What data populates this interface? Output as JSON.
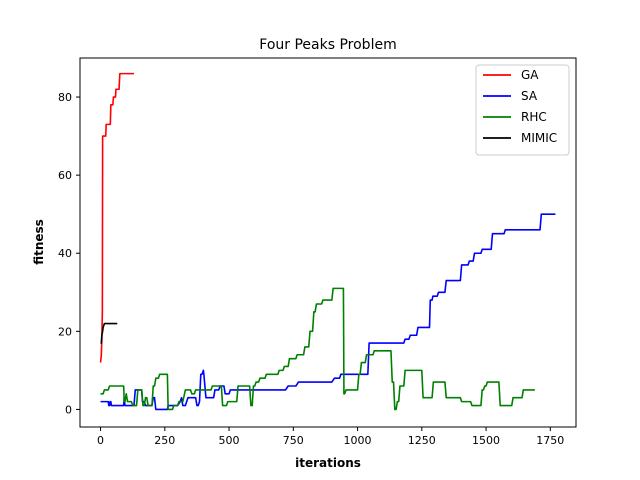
{
  "chart_data": {
    "type": "line",
    "title": "Four Peaks Problem",
    "xlabel": "iterations",
    "ylabel": "fitness",
    "xlim": [
      -80,
      1850
    ],
    "ylim": [
      -4.5,
      90
    ],
    "xticks": [
      0,
      250,
      500,
      750,
      1000,
      1250,
      1500,
      1750
    ],
    "yticks": [
      0,
      20,
      40,
      60,
      80
    ],
    "legend_position": "top-right",
    "grid": false,
    "series": [
      {
        "name": "GA",
        "color": "#ff0000",
        "points": [
          [
            0,
            12
          ],
          [
            3,
            14
          ],
          [
            5,
            18
          ],
          [
            7,
            25
          ],
          [
            8,
            70
          ],
          [
            20,
            70
          ],
          [
            22,
            73
          ],
          [
            38,
            73
          ],
          [
            40,
            78
          ],
          [
            48,
            78
          ],
          [
            50,
            80
          ],
          [
            58,
            80
          ],
          [
            60,
            82
          ],
          [
            72,
            82
          ],
          [
            75,
            86
          ],
          [
            130,
            86
          ]
        ]
      },
      {
        "name": "SA",
        "color": "#0000ff",
        "points": [
          [
            0,
            2
          ],
          [
            30,
            2
          ],
          [
            32,
            1
          ],
          [
            35,
            1
          ],
          [
            37,
            2
          ],
          [
            40,
            2
          ],
          [
            42,
            1
          ],
          [
            90,
            1
          ],
          [
            92,
            3
          ],
          [
            95,
            1
          ],
          [
            130,
            1
          ],
          [
            135,
            5
          ],
          [
            160,
            5
          ],
          [
            163,
            2
          ],
          [
            170,
            2
          ],
          [
            175,
            1
          ],
          [
            200,
            1
          ],
          [
            205,
            3
          ],
          [
            210,
            3
          ],
          [
            215,
            0
          ],
          [
            260,
            0
          ],
          [
            263,
            1
          ],
          [
            300,
            1
          ],
          [
            310,
            2
          ],
          [
            315,
            3
          ],
          [
            320,
            1
          ],
          [
            330,
            1
          ],
          [
            340,
            3
          ],
          [
            370,
            3
          ],
          [
            375,
            1
          ],
          [
            380,
            1
          ],
          [
            385,
            2
          ],
          [
            390,
            9
          ],
          [
            395,
            9
          ],
          [
            400,
            10
          ],
          [
            402,
            9
          ],
          [
            410,
            3
          ],
          [
            440,
            3
          ],
          [
            445,
            5
          ],
          [
            460,
            5
          ],
          [
            465,
            6
          ],
          [
            480,
            6
          ],
          [
            485,
            4
          ],
          [
            500,
            4
          ],
          [
            505,
            5
          ],
          [
            720,
            5
          ],
          [
            730,
            6
          ],
          [
            760,
            6
          ],
          [
            770,
            7
          ],
          [
            900,
            7
          ],
          [
            910,
            8
          ],
          [
            930,
            8
          ],
          [
            935,
            9
          ],
          [
            1040,
            9
          ],
          [
            1045,
            17
          ],
          [
            1180,
            17
          ],
          [
            1185,
            18
          ],
          [
            1200,
            18
          ],
          [
            1205,
            19
          ],
          [
            1230,
            19
          ],
          [
            1235,
            21
          ],
          [
            1280,
            21
          ],
          [
            1283,
            28
          ],
          [
            1290,
            28
          ],
          [
            1293,
            29
          ],
          [
            1310,
            29
          ],
          [
            1315,
            30
          ],
          [
            1340,
            30
          ],
          [
            1345,
            33
          ],
          [
            1400,
            33
          ],
          [
            1405,
            37
          ],
          [
            1430,
            37
          ],
          [
            1435,
            38
          ],
          [
            1450,
            38
          ],
          [
            1455,
            40
          ],
          [
            1480,
            40
          ],
          [
            1485,
            41
          ],
          [
            1520,
            41
          ],
          [
            1525,
            45
          ],
          [
            1570,
            45
          ],
          [
            1575,
            46
          ],
          [
            1710,
            46
          ],
          [
            1715,
            50
          ],
          [
            1770,
            50
          ]
        ]
      },
      {
        "name": "RHC",
        "color": "#008000",
        "points": [
          [
            0,
            4
          ],
          [
            10,
            4
          ],
          [
            15,
            5
          ],
          [
            30,
            5
          ],
          [
            35,
            6
          ],
          [
            90,
            6
          ],
          [
            92,
            2
          ],
          [
            95,
            2
          ],
          [
            100,
            4
          ],
          [
            105,
            2
          ],
          [
            120,
            2
          ],
          [
            125,
            1
          ],
          [
            140,
            1
          ],
          [
            145,
            5
          ],
          [
            160,
            5
          ],
          [
            165,
            1
          ],
          [
            170,
            1
          ],
          [
            175,
            3
          ],
          [
            180,
            3
          ],
          [
            185,
            1
          ],
          [
            200,
            1
          ],
          [
            205,
            6
          ],
          [
            210,
            6
          ],
          [
            215,
            8
          ],
          [
            225,
            8
          ],
          [
            230,
            9
          ],
          [
            260,
            9
          ],
          [
            263,
            0
          ],
          [
            280,
            0
          ],
          [
            285,
            1
          ],
          [
            300,
            1
          ],
          [
            305,
            2
          ],
          [
            320,
            2
          ],
          [
            330,
            5
          ],
          [
            350,
            5
          ],
          [
            355,
            4
          ],
          [
            365,
            4
          ],
          [
            370,
            5
          ],
          [
            400,
            5
          ],
          [
            405,
            5
          ],
          [
            430,
            5
          ],
          [
            435,
            6
          ],
          [
            470,
            6
          ],
          [
            475,
            1
          ],
          [
            490,
            1
          ],
          [
            495,
            2
          ],
          [
            530,
            2
          ],
          [
            535,
            6
          ],
          [
            580,
            6
          ],
          [
            585,
            1
          ],
          [
            590,
            1
          ],
          [
            595,
            6
          ],
          [
            600,
            6
          ],
          [
            605,
            7
          ],
          [
            615,
            7
          ],
          [
            620,
            8
          ],
          [
            640,
            8
          ],
          [
            645,
            9
          ],
          [
            650,
            9
          ],
          [
            655,
            9
          ],
          [
            690,
            9
          ],
          [
            695,
            10
          ],
          [
            710,
            10
          ],
          [
            715,
            11
          ],
          [
            730,
            11
          ],
          [
            735,
            13
          ],
          [
            740,
            13
          ],
          [
            745,
            13
          ],
          [
            760,
            13
          ],
          [
            765,
            14
          ],
          [
            790,
            14
          ],
          [
            795,
            16
          ],
          [
            810,
            16
          ],
          [
            815,
            20
          ],
          [
            825,
            20
          ],
          [
            830,
            25
          ],
          [
            835,
            25
          ],
          [
            840,
            27
          ],
          [
            860,
            27
          ],
          [
            865,
            28
          ],
          [
            880,
            28
          ],
          [
            885,
            28
          ],
          [
            900,
            28
          ],
          [
            905,
            31
          ],
          [
            945,
            31
          ],
          [
            947,
            4
          ],
          [
            950,
            4
          ],
          [
            955,
            5
          ],
          [
            1000,
            5
          ],
          [
            1005,
            9
          ],
          [
            1010,
            9
          ],
          [
            1015,
            12
          ],
          [
            1030,
            12
          ],
          [
            1035,
            14
          ],
          [
            1060,
            14
          ],
          [
            1065,
            15
          ],
          [
            1130,
            15
          ],
          [
            1135,
            7
          ],
          [
            1140,
            7
          ],
          [
            1145,
            0
          ],
          [
            1150,
            0
          ],
          [
            1155,
            2
          ],
          [
            1160,
            2
          ],
          [
            1165,
            6
          ],
          [
            1180,
            6
          ],
          [
            1185,
            10
          ],
          [
            1250,
            10
          ],
          [
            1255,
            3
          ],
          [
            1290,
            3
          ],
          [
            1295,
            7
          ],
          [
            1340,
            7
          ],
          [
            1345,
            3
          ],
          [
            1380,
            3
          ],
          [
            1385,
            3
          ],
          [
            1400,
            3
          ],
          [
            1405,
            2
          ],
          [
            1440,
            2
          ],
          [
            1445,
            1
          ],
          [
            1480,
            1
          ],
          [
            1485,
            5
          ],
          [
            1490,
            5
          ],
          [
            1495,
            6
          ],
          [
            1500,
            6
          ],
          [
            1505,
            7
          ],
          [
            1550,
            7
          ],
          [
            1555,
            1
          ],
          [
            1600,
            1
          ],
          [
            1605,
            3
          ],
          [
            1640,
            3
          ],
          [
            1645,
            5
          ],
          [
            1690,
            5
          ]
        ]
      },
      {
        "name": "MIMIC",
        "color": "#000000",
        "points": [
          [
            0,
            17
          ],
          [
            3,
            17
          ],
          [
            5,
            19
          ],
          [
            8,
            20
          ],
          [
            10,
            21
          ],
          [
            15,
            22
          ],
          [
            20,
            22
          ],
          [
            65,
            22
          ]
        ]
      }
    ]
  }
}
